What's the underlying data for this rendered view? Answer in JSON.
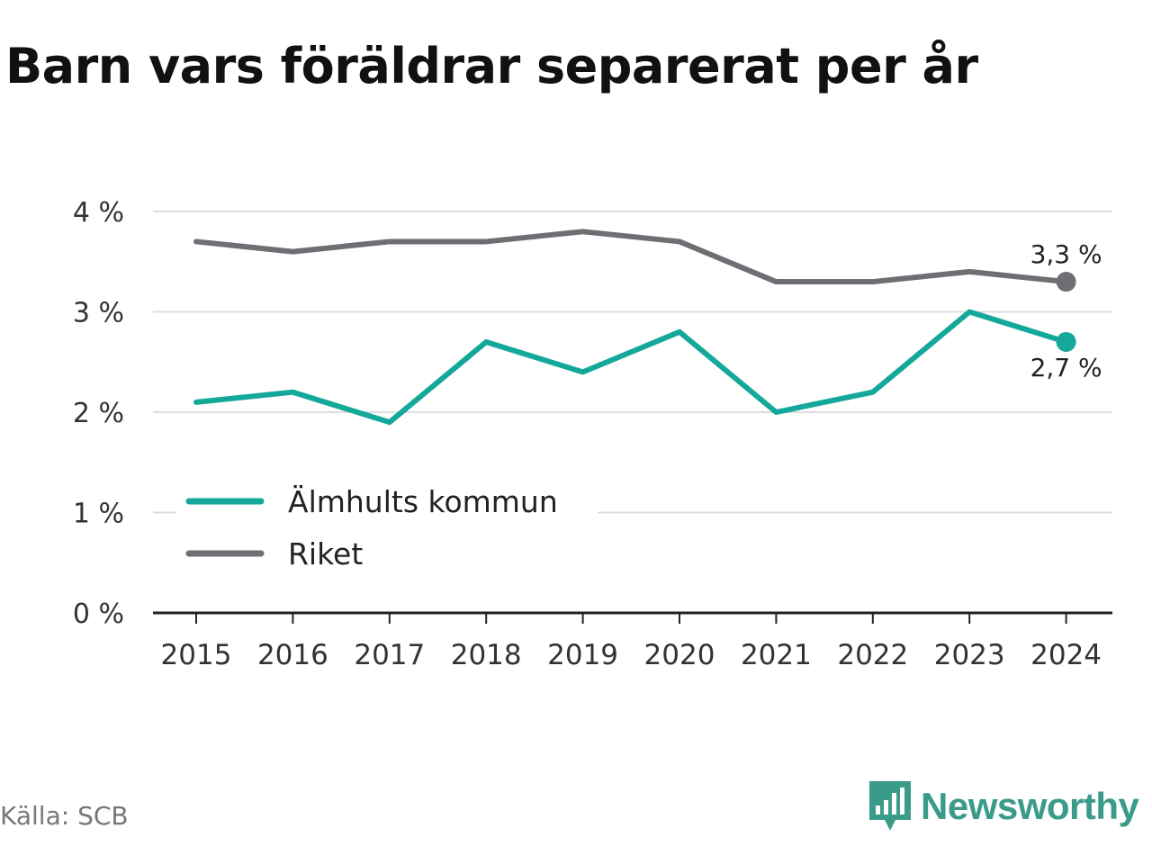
{
  "title": "Barn vars föräldrar separerat per år",
  "source": "Källa: SCB",
  "brand": {
    "name": "Newsworthy",
    "icon": "newsworthy-logo-icon",
    "color": "#3a9b8a"
  },
  "chart_data": {
    "type": "line",
    "x": [
      "2015",
      "2016",
      "2017",
      "2018",
      "2019",
      "2020",
      "2021",
      "2022",
      "2023",
      "2024"
    ],
    "series": [
      {
        "name": "Älmhults kommun",
        "color": "#14a89b",
        "values": [
          2.1,
          2.2,
          1.9,
          2.7,
          2.4,
          2.8,
          2.0,
          2.2,
          3.0,
          2.7
        ],
        "end_label": "2,7 %"
      },
      {
        "name": "Riket",
        "color": "#6e6e74",
        "values": [
          3.7,
          3.6,
          3.7,
          3.7,
          3.8,
          3.7,
          3.3,
          3.3,
          3.4,
          3.3
        ],
        "end_label": "3,3 %"
      }
    ],
    "y_ticks": [
      {
        "value": 0,
        "label": "0 %"
      },
      {
        "value": 1,
        "label": "1 %"
      },
      {
        "value": 2,
        "label": "2 %"
      },
      {
        "value": 3,
        "label": "3 %"
      },
      {
        "value": 4,
        "label": "4 %"
      }
    ],
    "ylim": [
      0,
      4
    ],
    "grid": true,
    "legend_position": "bottom-left",
    "xlabel": "",
    "ylabel": ""
  }
}
